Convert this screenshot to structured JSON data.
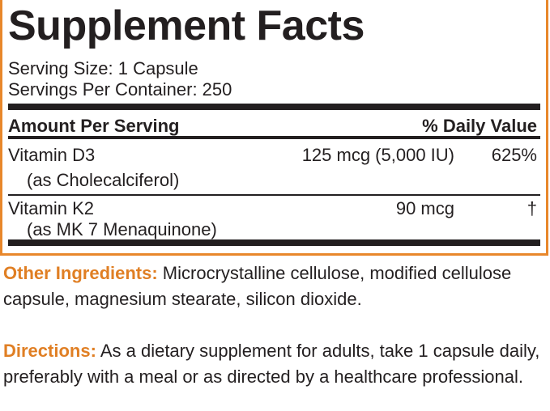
{
  "panel": {
    "title": "Supplement Facts",
    "serving_size": "Serving Size: 1 Capsule",
    "servings_per_container": "Servings Per Container: 250",
    "header": {
      "amount": "Amount Per Serving",
      "daily_value": "% Daily Value"
    },
    "rows": [
      {
        "name": "Vitamin D3",
        "sub": "(as Cholecalciferol)",
        "amount": "125 mcg (5,000 IU)",
        "dv": "625%"
      },
      {
        "name": "Vitamin K2",
        "sub": "(as MK 7 Menaquinone)",
        "amount": "90 mcg",
        "dv": "†"
      }
    ]
  },
  "other_ingredients": {
    "label": "Other Ingredients:",
    "text": " Microcrystalline cellulose, modified cellulose capsule, magnesium stearate, silicon dioxide."
  },
  "directions": {
    "label": "Directions:",
    "text": " As a dietary supplement for adults, take 1 capsule daily, preferably with a meal or as directed by a healthcare professional."
  },
  "colors": {
    "accent": "#e8872b",
    "text": "#231f20"
  }
}
